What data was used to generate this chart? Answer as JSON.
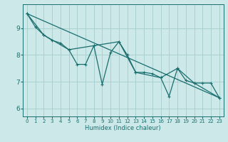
{
  "xlabel": "Humidex (Indice chaleur)",
  "bg_color": "#cce8e8",
  "grid_color": "#aad0d0",
  "line_color": "#1a6e6e",
  "xlim": [
    -0.5,
    23.5
  ],
  "ylim": [
    5.7,
    9.9
  ],
  "yticks": [
    6,
    7,
    8,
    9
  ],
  "xticks": [
    0,
    1,
    2,
    3,
    4,
    5,
    6,
    7,
    8,
    9,
    10,
    11,
    12,
    13,
    14,
    15,
    16,
    17,
    18,
    19,
    20,
    21,
    22,
    23
  ],
  "series1": [
    [
      0,
      9.55
    ],
    [
      1,
      9.05
    ],
    [
      2,
      8.75
    ],
    [
      3,
      8.55
    ],
    [
      4,
      8.45
    ],
    [
      5,
      8.2
    ],
    [
      6,
      7.65
    ],
    [
      7,
      7.65
    ],
    [
      8,
      8.35
    ],
    [
      9,
      6.9
    ],
    [
      10,
      8.1
    ],
    [
      11,
      8.5
    ],
    [
      12,
      8.0
    ],
    [
      13,
      7.35
    ],
    [
      14,
      7.35
    ],
    [
      15,
      7.3
    ],
    [
      16,
      7.15
    ],
    [
      17,
      6.45
    ],
    [
      18,
      7.5
    ],
    [
      19,
      7.05
    ],
    [
      20,
      6.95
    ],
    [
      21,
      6.95
    ],
    [
      22,
      6.95
    ],
    [
      23,
      6.4
    ]
  ],
  "series2": [
    [
      0,
      9.55
    ],
    [
      2,
      8.75
    ],
    [
      5,
      8.2
    ],
    [
      8,
      8.35
    ],
    [
      11,
      8.5
    ],
    [
      13,
      7.35
    ],
    [
      16,
      7.15
    ],
    [
      18,
      7.5
    ],
    [
      20,
      6.95
    ],
    [
      23,
      6.4
    ]
  ],
  "series3": [
    [
      0,
      9.55
    ],
    [
      23,
      6.4
    ]
  ]
}
